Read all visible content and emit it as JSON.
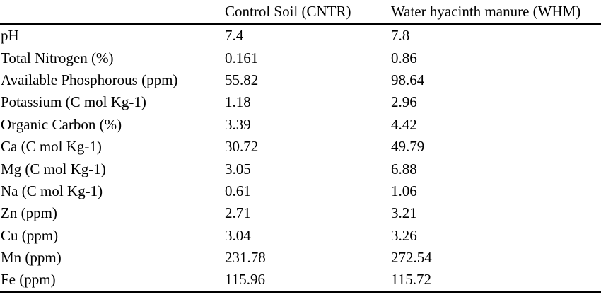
{
  "table": {
    "columns": [
      "",
      "Control Soil (CNTR)",
      "Water hyacinth manure (WHM)"
    ],
    "rows": [
      {
        "property": "pH",
        "cntr": "7.4",
        "whm": "7.8"
      },
      {
        "property": "Total Nitrogen (%)",
        "cntr": "0.161",
        "whm": "0.86"
      },
      {
        "property": "Available Phosphorous (ppm)",
        "cntr": "55.82",
        "whm": "98.64"
      },
      {
        "property": "Potassium (C mol Kg-1)",
        "cntr": "1.18",
        "whm": "2.96"
      },
      {
        "property": "Organic Carbon (%)",
        "cntr": "3.39",
        "whm": "4.42"
      },
      {
        "property": "Ca (C mol Kg-1)",
        "cntr": "30.72",
        "whm": "49.79"
      },
      {
        "property": "Mg (C mol Kg-1)",
        "cntr": "3.05",
        "whm": "6.88"
      },
      {
        "property": "Na (C mol Kg-1)",
        "cntr": "0.61",
        "whm": "1.06"
      },
      {
        "property": "Zn (ppm)",
        "cntr": "2.71",
        "whm": "3.21"
      },
      {
        "property": "Cu (ppm)",
        "cntr": "3.04",
        "whm": "3.26"
      },
      {
        "property": "Mn (ppm)",
        "cntr": "231.78",
        "whm": "272.54"
      },
      {
        "property": "Fe (ppm)",
        "cntr": "115.96",
        "whm": "115.72"
      }
    ],
    "text_color": "#000000",
    "rule_color": "#000000",
    "background_color": "#ffffff"
  }
}
